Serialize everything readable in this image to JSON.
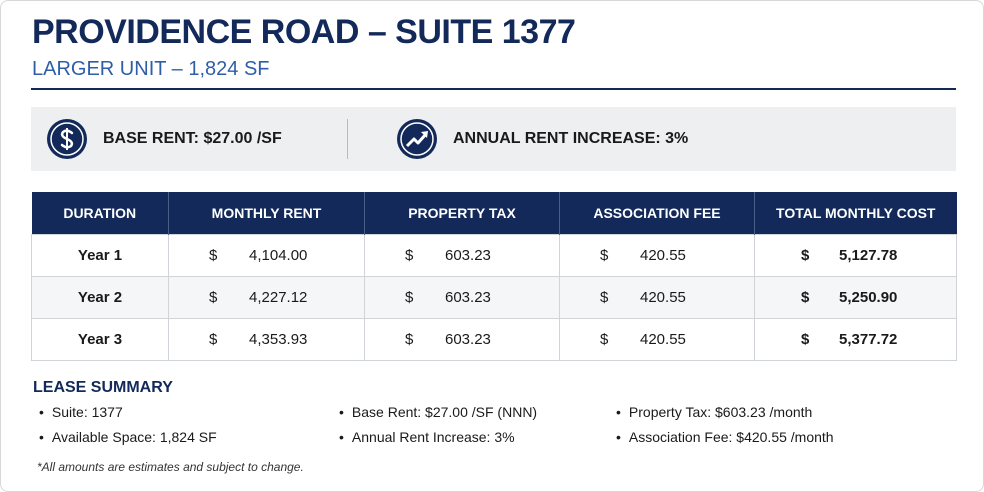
{
  "header": {
    "title": "PROVIDENCE ROAD – SUITE 1377",
    "subtitle": "LARGER UNIT – 1,824 SF"
  },
  "highlights": [
    {
      "label": "BASE RENT: $27.00 /SF"
    },
    {
      "label": "ANNUAL RENT INCREASE: 3%"
    }
  ],
  "table": {
    "columns": [
      "DURATION",
      "MONTHLY RENT",
      "PROPERTY TAX",
      "ASSOCIATION FEE",
      "TOTAL MONTHLY COST"
    ],
    "rows": [
      [
        "Year 1",
        {
          "currency": "$",
          "amount": "4,104.00"
        },
        {
          "currency": "$",
          "amount": "603.23"
        },
        {
          "currency": "$",
          "amount": "420.55"
        },
        {
          "currency": "$",
          "amount": "5,127.78"
        }
      ],
      [
        "Year 2",
        {
          "currency": "$",
          "amount": "4,227.12"
        },
        {
          "currency": "$",
          "amount": "603.23"
        },
        {
          "currency": "$",
          "amount": "420.55"
        },
        {
          "currency": "$",
          "amount": "5,250.90"
        }
      ],
      [
        "Year 3",
        {
          "currency": "$",
          "amount": "4,353.93"
        },
        {
          "currency": "$",
          "amount": "603.23"
        },
        {
          "currency": "$",
          "amount": "420.55"
        },
        {
          "currency": "$",
          "amount": "5,377.72"
        }
      ]
    ]
  },
  "summary": {
    "heading": "LEASE SUMMARY",
    "columns": [
      [
        "Suite: 1377",
        "Available Space: 1,824 SF"
      ],
      [
        "Base Rent: $27.00 /SF (NNN)",
        "Annual Rent Increase: 3%"
      ],
      [
        "Property Tax: $603.23 /month",
        "Association Fee: $420.55 /month"
      ]
    ],
    "footnote": "*All amounts are estimates and subject to change."
  }
}
